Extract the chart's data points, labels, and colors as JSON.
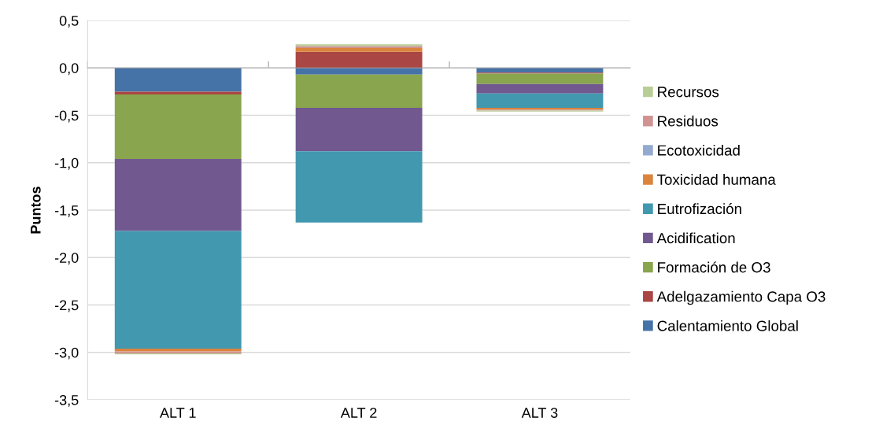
{
  "chart_data": {
    "type": "bar",
    "stacked": true,
    "ylabel": "Puntos",
    "categories": [
      "ALT 1",
      "ALT 2",
      "ALT 3"
    ],
    "series": [
      {
        "name": "Calentamiento Global",
        "color": "#4572a7",
        "values": [
          -0.25,
          -0.07,
          -0.05
        ]
      },
      {
        "name": "Adelgazamiento Capa O3",
        "color": "#aa4643",
        "values": [
          -0.03,
          0.17,
          -0.01
        ]
      },
      {
        "name": "Formación de O3",
        "color": "#89a54e",
        "values": [
          -0.68,
          -0.35,
          -0.11
        ]
      },
      {
        "name": "Acidification",
        "color": "#71588f",
        "values": [
          -0.76,
          -0.46,
          -0.1
        ]
      },
      {
        "name": "Eutrofización",
        "color": "#4198af",
        "values": [
          -1.24,
          -0.75,
          -0.15
        ]
      },
      {
        "name": "Toxicidad humana",
        "color": "#db843d",
        "values": [
          -0.03,
          0.04,
          -0.02
        ]
      },
      {
        "name": "Ecotoxicidad",
        "color": "#93a9cf",
        "values": [
          0,
          0,
          0
        ]
      },
      {
        "name": "Residuos",
        "color": "#d19392",
        "values": [
          -0.02,
          0.02,
          -0.01
        ]
      },
      {
        "name": "Recursos",
        "color": "#b9cd96",
        "values": [
          -0.01,
          0.02,
          -0.01
        ]
      }
    ],
    "ylim": [
      -3.5,
      0.5
    ],
    "yticks": [
      {
        "value": 0.5,
        "label": "0,5"
      },
      {
        "value": 0,
        "label": "0,0"
      },
      {
        "value": -0.5,
        "label": "-0,5"
      },
      {
        "value": -1,
        "label": "-1,0"
      },
      {
        "value": -1.5,
        "label": "-1,5"
      },
      {
        "value": -2,
        "label": "-2,0"
      },
      {
        "value": -2.5,
        "label": "-2,5"
      },
      {
        "value": -3,
        "label": "-3,0"
      },
      {
        "value": -3.5,
        "label": "-3,5"
      }
    ],
    "grid": "y",
    "legend": "right"
  }
}
